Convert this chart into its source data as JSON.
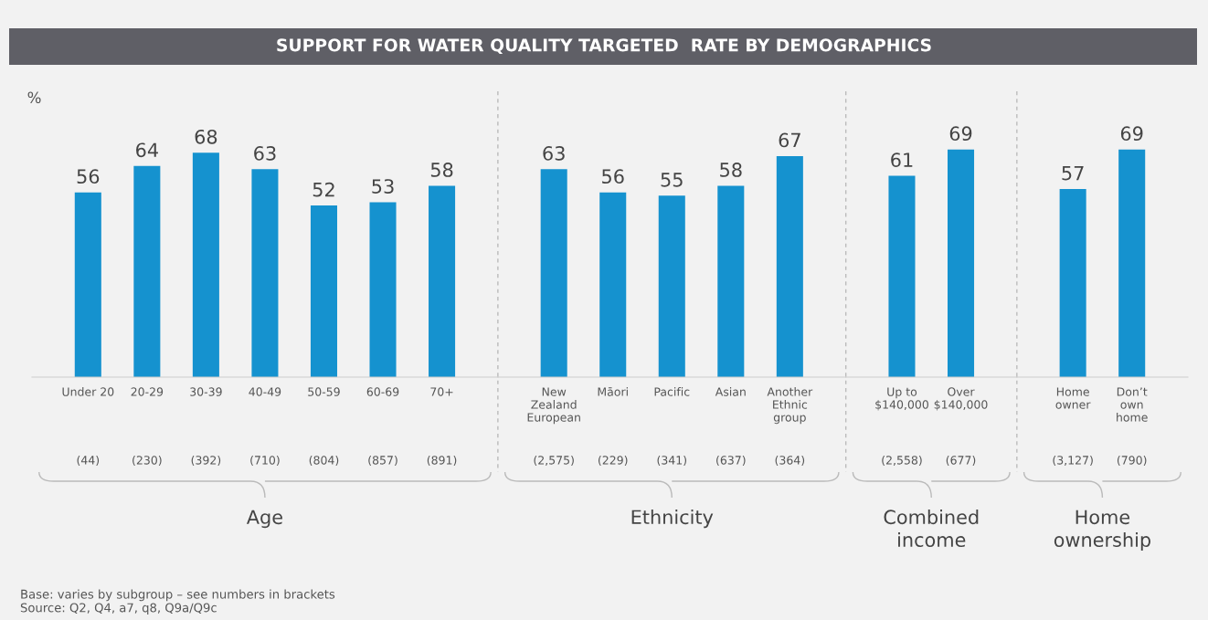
{
  "chart_data": [
    {
      "type": "bar",
      "title": "SUPPORT FOR WATER QUALITY TARGETED  RATE BY DEMOGRAPHICS",
      "ylabel": "%",
      "xlabel": "Age",
      "categories": [
        "Under 20",
        "20-29",
        "30-39",
        "40-49",
        "50-59",
        "60-69",
        "70+"
      ],
      "values": [
        56,
        64,
        68,
        63,
        52,
        53,
        58
      ],
      "color": "#1592cf",
      "data_labels": true,
      "tick_labels": "x",
      "annotations": [
        "(44)",
        "(230)",
        "(392)",
        "(710)",
        "(804)",
        "(857)",
        "(891)",
        "Base: varies by subgroup – see numbers in brackets\nSource: Q2, Q4, a7, q8, Q9a/Q9c"
      ]
    },
    {
      "type": "bar",
      "xlabel": "Ethnicity",
      "categories": [
        "New\nZealand\nEuropean",
        "Māori",
        "Pacific",
        "Asian",
        "Another\nEthnic\ngroup"
      ],
      "values": [
        63,
        56,
        55,
        58,
        67
      ],
      "color": "#1592cf",
      "data_labels": true,
      "tick_labels": "x",
      "annotations": [
        "(2,575)",
        "(229)",
        "(341)",
        "(637)",
        "(364)"
      ]
    },
    {
      "type": "bar",
      "xlabel": "Combined\nincome",
      "categories": [
        "Up to\n$140,000",
        "Over\n$140,000"
      ],
      "values": [
        61,
        69
      ],
      "color": "#1592cf",
      "data_labels": true,
      "tick_labels": "x",
      "annotations": [
        "(2,558)",
        "(677)"
      ]
    },
    {
      "type": "bar",
      "xlabel": "Home\nownership",
      "categories": [
        "Home\nowner",
        "Don’t\nown\nhome"
      ],
      "values": [
        57,
        69
      ],
      "color": "#1592cf",
      "data_labels": true,
      "tick_labels": "x",
      "annotations": [
        "(3,127)",
        "(790)"
      ]
    }
  ]
}
